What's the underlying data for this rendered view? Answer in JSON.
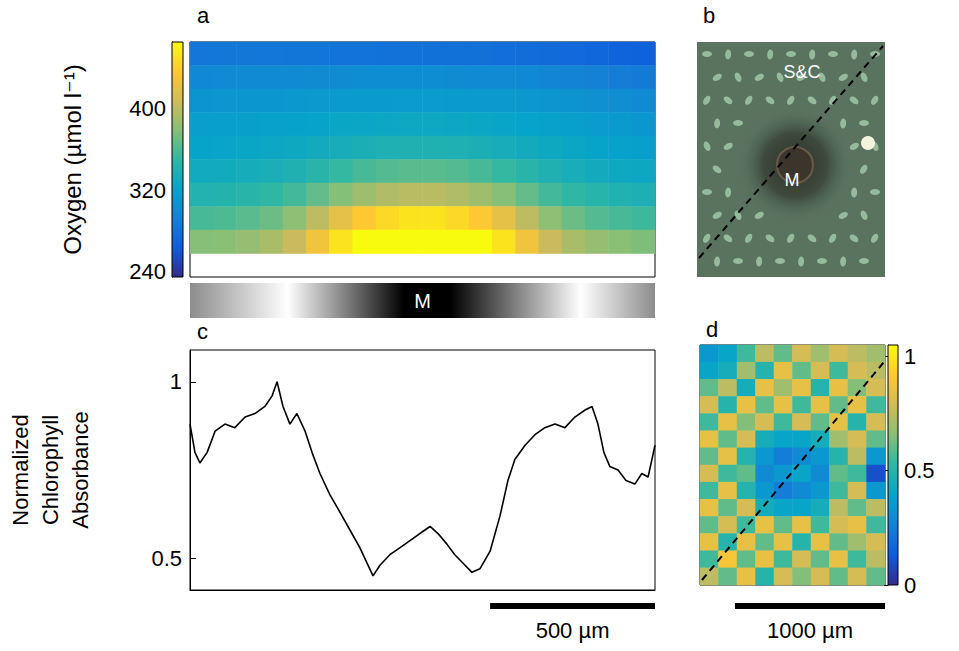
{
  "chart_data": [
    {
      "type": "heatmap",
      "panel": "a",
      "colors": [
        "#352a87",
        "#0f5cdd",
        "#1481d6",
        "#06a4ca",
        "#2eb7a4",
        "#87bf77",
        "#d1bb59",
        "#fec832",
        "#f9fb0e"
      ],
      "values": [
        [
          284,
          285,
          285,
          284,
          283,
          283,
          282,
          282,
          281,
          281,
          280,
          280,
          279,
          278,
          277,
          276,
          274,
          272,
          270,
          268
        ],
        [
          298,
          299,
          300,
          300,
          300,
          301,
          301,
          302,
          302,
          302,
          302,
          301,
          300,
          299,
          298,
          296,
          294,
          292,
          290,
          288
        ],
        [
          308,
          309,
          310,
          310,
          311,
          312,
          313,
          314,
          314,
          315,
          315,
          314,
          313,
          312,
          311,
          309,
          307,
          305,
          303,
          300
        ],
        [
          316,
          317,
          318,
          319,
          320,
          322,
          324,
          325,
          326,
          327,
          327,
          326,
          325,
          323,
          321,
          319,
          317,
          315,
          313,
          310
        ],
        [
          322,
          323,
          324,
          326,
          328,
          331,
          334,
          337,
          339,
          340,
          340,
          339,
          337,
          334,
          331,
          328,
          325,
          322,
          320,
          318
        ],
        [
          330,
          331,
          333,
          336,
          340,
          346,
          352,
          358,
          362,
          364,
          364,
          362,
          358,
          352,
          346,
          340,
          335,
          331,
          328,
          326
        ],
        [
          342,
          343,
          346,
          350,
          357,
          367,
          378,
          388,
          395,
          398,
          398,
          395,
          388,
          378,
          367,
          357,
          350,
          345,
          341,
          338
        ],
        [
          358,
          360,
          364,
          370,
          382,
          400,
          420,
          436,
          446,
          452,
          452,
          446,
          436,
          420,
          400,
          382,
          370,
          362,
          358,
          355
        ],
        [
          378,
          380,
          384,
          392,
          405,
          428,
          452,
          465,
          465,
          465,
          465,
          465,
          465,
          452,
          428,
          405,
          392,
          384,
          380,
          376
        ],
        [
          null,
          null,
          null,
          null,
          null,
          null,
          null,
          null,
          null,
          null,
          null,
          null,
          null,
          null,
          null,
          null,
          null,
          null,
          null,
          null
        ]
      ],
      "colorbar": {
        "label": "Oxygen (µmol l⁻¹)",
        "range": [
          235,
          465
        ],
        "ticks": [
          240,
          320,
          400
        ]
      },
      "annotations": [
        "M"
      ]
    },
    {
      "type": "image",
      "panel": "b",
      "annotations": [
        "S&C",
        "M"
      ]
    },
    {
      "type": "line",
      "panel": "c",
      "color": "#000000",
      "ylabel": "Normalized Chlorophyll Absorbance",
      "x": [
        0,
        15,
        30,
        52,
        76,
        106,
        136,
        167,
        197,
        227,
        249,
        264,
        282,
        303,
        324,
        349,
        370,
        394,
        424,
        455,
        485,
        515,
        540,
        555,
        576,
        606,
        637,
        667,
        697,
        728,
        752,
        779,
        803,
        834,
        855,
        879,
        910,
        940,
        964,
        985,
        1016,
        1046,
        1076,
        1107,
        1137,
        1167,
        1198,
        1219,
        1237,
        1255,
        1273,
        1298,
        1322,
        1349,
        1370,
        1389,
        1410
      ],
      "values": [
        0.88,
        0.8,
        0.77,
        0.8,
        0.86,
        0.88,
        0.87,
        0.9,
        0.91,
        0.93,
        0.96,
        1,
        0.93,
        0.88,
        0.91,
        0.86,
        0.8,
        0.74,
        0.68,
        0.63,
        0.58,
        0.53,
        0.48,
        0.45,
        0.48,
        0.51,
        0.53,
        0.55,
        0.57,
        0.59,
        0.57,
        0.54,
        0.51,
        0.48,
        0.46,
        0.47,
        0.52,
        0.62,
        0.72,
        0.78,
        0.82,
        0.85,
        0.87,
        0.88,
        0.87,
        0.9,
        0.92,
        0.93,
        0.88,
        0.8,
        0.76,
        0.75,
        0.72,
        0.71,
        0.74,
        0.73,
        0.82
      ],
      "xlim": [
        0,
        1410
      ],
      "ylim": [
        0.41,
        1.09
      ],
      "yticks": [
        0.5,
        1
      ],
      "tick_labels": "y",
      "grid": false,
      "scale_bar": {
        "length": 500,
        "label": "500 µm"
      }
    },
    {
      "type": "heatmap",
      "panel": "d",
      "colors": [
        "#352a87",
        "#0f5cdd",
        "#1481d6",
        "#06a4ca",
        "#2eb7a4",
        "#87bf77",
        "#d1bb59",
        "#fec832",
        "#f9fb0e"
      ],
      "values": [
        [
          0.35,
          0.4,
          0.55,
          0.75,
          0.6,
          0.8,
          0.7,
          0.8,
          0.75,
          0.7
        ],
        [
          0.4,
          0.45,
          0.7,
          0.5,
          0.85,
          0.6,
          0.8,
          0.55,
          0.8,
          0.75
        ],
        [
          0.6,
          0.75,
          0.45,
          0.85,
          0.7,
          0.85,
          0.5,
          0.85,
          0.65,
          0.8
        ],
        [
          0.8,
          0.5,
          0.85,
          0.6,
          0.85,
          0.55,
          0.85,
          0.6,
          0.85,
          0.55
        ],
        [
          0.55,
          0.85,
          0.65,
          0.8,
          0.55,
          0.8,
          0.6,
          0.85,
          0.5,
          0.8
        ],
        [
          0.85,
          0.6,
          0.8,
          0.45,
          0.4,
          0.4,
          0.45,
          0.7,
          0.8,
          0.6
        ],
        [
          0.6,
          0.85,
          0.5,
          0.35,
          0.25,
          0.3,
          0.35,
          0.5,
          0.75,
          0.35
        ],
        [
          0.8,
          0.55,
          0.6,
          0.3,
          0.35,
          0.4,
          0.3,
          0.6,
          0.55,
          0.1
        ],
        [
          0.55,
          0.85,
          0.5,
          0.35,
          0.25,
          0.3,
          0.35,
          0.55,
          0.8,
          0.35
        ],
        [
          0.85,
          0.6,
          0.8,
          0.45,
          0.4,
          0.4,
          0.45,
          0.75,
          0.6,
          0.75
        ],
        [
          0.6,
          0.8,
          0.55,
          0.85,
          0.6,
          0.85,
          0.55,
          0.8,
          0.85,
          0.55
        ],
        [
          0.85,
          0.5,
          0.85,
          0.6,
          0.85,
          0.5,
          0.85,
          0.6,
          0.7,
          0.8
        ],
        [
          0.55,
          0.9,
          0.6,
          0.85,
          0.55,
          0.8,
          0.6,
          0.85,
          0.55,
          0.75
        ],
        [
          0.75,
          0.6,
          0.85,
          0.5,
          0.8,
          0.65,
          0.8,
          0.6,
          0.8,
          0.6
        ]
      ],
      "colorbar": {
        "range": [
          0,
          1.05
        ],
        "ticks": [
          0,
          0.5,
          1
        ]
      },
      "xlim": [
        0,
        1233
      ],
      "scale_bar": {
        "length": 1000,
        "label": "1000 µm"
      }
    }
  ]
}
